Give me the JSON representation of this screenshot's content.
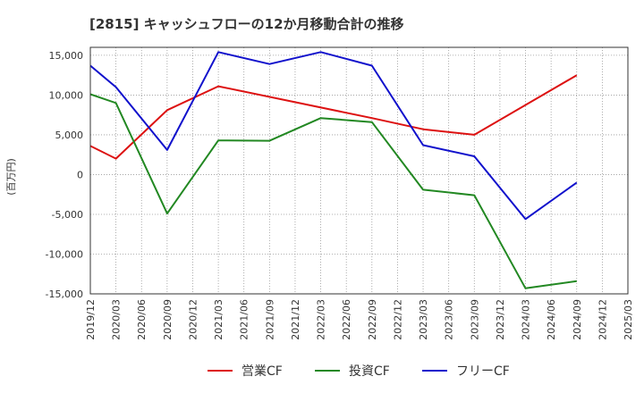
{
  "chart_data": {
    "type": "line",
    "title": "[2815]  キャッシュフローの12か月移動合計の推移",
    "ylabel": "(百万円)",
    "xlabel": "",
    "ylim": [
      -15000,
      16000
    ],
    "yticks": [
      15000,
      10000,
      5000,
      0,
      -5000,
      -10000,
      -15000
    ],
    "ytick_labels": [
      "15,000",
      "10,000",
      "5,000",
      "0",
      "-5,000",
      "-10,000",
      "-15,000"
    ],
    "categories": [
      "2019/12",
      "2020/03",
      "2020/06",
      "2020/09",
      "2020/12",
      "2021/03",
      "2021/06",
      "2021/09",
      "2021/12",
      "2022/03",
      "2022/06",
      "2022/09",
      "2022/12",
      "2023/03",
      "2023/06",
      "2023/09",
      "2023/12",
      "2024/03",
      "2024/06",
      "2024/09",
      "2024/12",
      "2025/03"
    ],
    "series": [
      {
        "name": "営業CF",
        "color": "#dd1111",
        "values": [
          3600,
          2000,
          null,
          8100,
          null,
          11100,
          null,
          null,
          null,
          null,
          null,
          7100,
          null,
          5700,
          null,
          5000,
          null,
          null,
          null,
          12500,
          null,
          null
        ]
      },
      {
        "name": "投資CF",
        "color": "#228822",
        "values": [
          10100,
          9000,
          null,
          -4900,
          null,
          4300,
          null,
          4250,
          null,
          7100,
          null,
          6600,
          null,
          -1900,
          null,
          -2600,
          null,
          -14300,
          null,
          -13400,
          null,
          null
        ]
      },
      {
        "name": "フリーCF",
        "color": "#1111cc",
        "values": [
          13700,
          11000,
          null,
          3100,
          null,
          15400,
          null,
          13900,
          null,
          15400,
          null,
          13700,
          null,
          3700,
          null,
          2300,
          null,
          -5600,
          null,
          -1000,
          null,
          null
        ]
      }
    ],
    "grid": true,
    "legend_position": "bottom"
  }
}
